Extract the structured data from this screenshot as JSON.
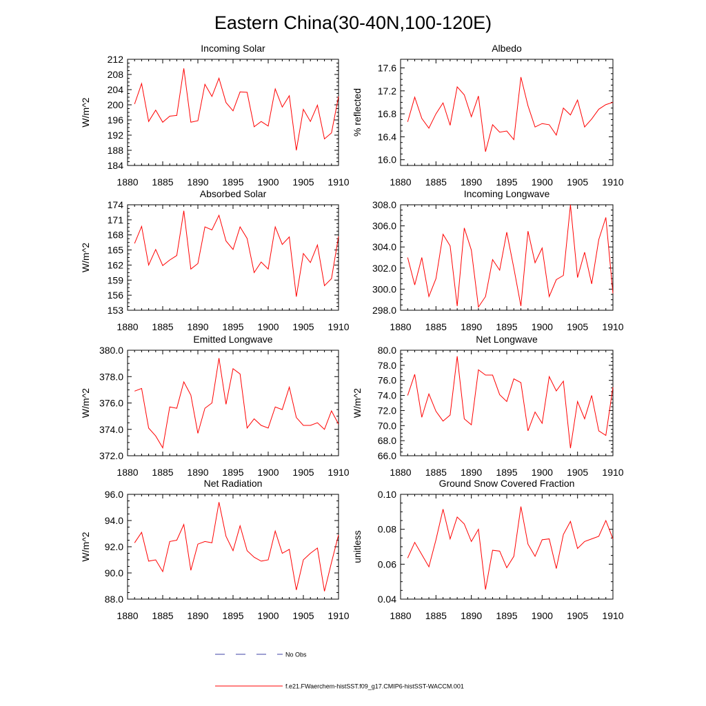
{
  "figure": {
    "title": "Eastern China(30-40N,100-120E)"
  },
  "colors": {
    "model_line": "#ff0000",
    "obs_line": "#3b3fa6",
    "axis": "#000000",
    "background": "#ffffff"
  },
  "legend": {
    "obs_label": "No Obs",
    "model_label": "f.e21.FWaerchem-histSST.f09_g17.CMIP6-histSST-WACCM.001",
    "obs_line_style": "dashed",
    "placement": "bottom-center"
  },
  "chart_data": [
    {
      "type": "line",
      "title": "Incoming Solar",
      "ylabel": "W/m^2",
      "xlim": [
        1880,
        1910
      ],
      "ylim": [
        184,
        212
      ],
      "xticks": [
        1880,
        1885,
        1890,
        1895,
        1900,
        1905,
        1910
      ],
      "yticks": [
        "184",
        "188",
        "192",
        "196",
        "200",
        "204",
        "208",
        "212"
      ],
      "grid": false,
      "x": [
        1881,
        1882,
        1883,
        1884,
        1885,
        1886,
        1887,
        1888,
        1889,
        1890,
        1891,
        1892,
        1893,
        1894,
        1895,
        1896,
        1897,
        1898,
        1899,
        1900,
        1901,
        1902,
        1903,
        1904,
        1905,
        1906,
        1907,
        1908,
        1909,
        1910
      ],
      "series": [
        {
          "values": [
            200.2,
            205.6,
            195.6,
            198.6,
            195.4,
            197.0,
            197.2,
            209.6,
            195.4,
            195.8,
            205.4,
            202.2,
            207.0,
            200.6,
            198.4,
            203.4,
            203.3,
            194.2,
            195.6,
            194.4,
            204.2,
            199.4,
            202.4,
            188.0,
            198.8,
            195.6,
            199.9,
            191.0,
            192.6,
            202.2
          ]
        }
      ]
    },
    {
      "type": "line",
      "title": "Albedo",
      "ylabel": "% reflected",
      "xlim": [
        1880,
        1910
      ],
      "ylim": [
        15.9,
        17.75
      ],
      "xticks": [
        1880,
        1885,
        1890,
        1895,
        1900,
        1905,
        1910
      ],
      "yticks": [
        "16.0",
        "16.4",
        "16.8",
        "17.2",
        "17.6"
      ],
      "grid": false,
      "x": [
        1881,
        1882,
        1883,
        1884,
        1885,
        1886,
        1887,
        1888,
        1889,
        1890,
        1891,
        1892,
        1893,
        1894,
        1895,
        1896,
        1897,
        1898,
        1899,
        1900,
        1901,
        1902,
        1903,
        1904,
        1905,
        1906,
        1907,
        1908,
        1909,
        1910
      ],
      "series": [
        {
          "values": [
            16.66,
            17.09,
            16.72,
            16.55,
            16.8,
            16.99,
            16.6,
            17.27,
            17.13,
            16.75,
            17.11,
            16.14,
            16.61,
            16.48,
            16.5,
            16.35,
            17.44,
            16.94,
            16.57,
            16.63,
            16.61,
            16.43,
            16.9,
            16.78,
            17.04,
            16.57,
            16.71,
            16.88,
            16.96,
            17.0
          ]
        }
      ]
    },
    {
      "type": "line",
      "title": "Absorbed Solar",
      "ylabel": "W/m^2",
      "xlim": [
        1880,
        1910
      ],
      "ylim": [
        153,
        174
      ],
      "xticks": [
        1880,
        1885,
        1890,
        1895,
        1900,
        1905,
        1910
      ],
      "yticks": [
        "153",
        "156",
        "159",
        "162",
        "165",
        "168",
        "171",
        "174"
      ],
      "grid": false,
      "x": [
        1881,
        1882,
        1883,
        1884,
        1885,
        1886,
        1887,
        1888,
        1889,
        1890,
        1891,
        1892,
        1893,
        1894,
        1895,
        1896,
        1897,
        1898,
        1899,
        1900,
        1901,
        1902,
        1903,
        1904,
        1905,
        1906,
        1907,
        1908,
        1909,
        1910
      ],
      "series": [
        {
          "values": [
            166.3,
            169.7,
            162.0,
            165.1,
            161.9,
            163.0,
            163.9,
            172.8,
            161.2,
            162.3,
            169.6,
            169.0,
            171.9,
            166.8,
            165.1,
            169.6,
            167.3,
            160.5,
            162.6,
            161.2,
            169.6,
            166.1,
            167.6,
            155.7,
            164.3,
            162.5,
            166.0,
            157.9,
            159.3,
            167.7
          ]
        }
      ]
    },
    {
      "type": "line",
      "title": "Incoming Longwave",
      "ylabel": "",
      "xlim": [
        1880,
        1910
      ],
      "ylim": [
        298.0,
        308.0
      ],
      "xticks": [
        1880,
        1885,
        1890,
        1895,
        1900,
        1905,
        1910
      ],
      "yticks": [
        "298.0",
        "300.0",
        "302.0",
        "304.0",
        "306.0",
        "308.0"
      ],
      "grid": false,
      "x": [
        1881,
        1882,
        1883,
        1884,
        1885,
        1886,
        1887,
        1888,
        1889,
        1890,
        1891,
        1892,
        1893,
        1894,
        1895,
        1896,
        1897,
        1898,
        1899,
        1900,
        1901,
        1902,
        1903,
        1904,
        1905,
        1906,
        1907,
        1908,
        1909,
        1910
      ],
      "series": [
        {
          "values": [
            303.0,
            300.4,
            303.0,
            299.3,
            301.0,
            305.2,
            304.1,
            298.4,
            305.8,
            303.7,
            298.3,
            299.3,
            302.8,
            301.8,
            305.4,
            302.0,
            298.4,
            305.5,
            302.5,
            303.9,
            299.3,
            300.9,
            301.3,
            308.0,
            301.1,
            303.5,
            300.5,
            304.7,
            306.8,
            299.6
          ]
        }
      ]
    },
    {
      "type": "line",
      "title": "Emitted Longwave",
      "ylabel": "W/m^2",
      "xlim": [
        1880,
        1910
      ],
      "ylim": [
        372.0,
        380.0
      ],
      "xticks": [
        1880,
        1885,
        1890,
        1895,
        1900,
        1905,
        1910
      ],
      "yticks": [
        "372.0",
        "374.0",
        "376.0",
        "378.0",
        "380.0"
      ],
      "grid": false,
      "x": [
        1881,
        1882,
        1883,
        1884,
        1885,
        1886,
        1887,
        1888,
        1889,
        1890,
        1891,
        1892,
        1893,
        1894,
        1895,
        1896,
        1897,
        1898,
        1899,
        1900,
        1901,
        1902,
        1903,
        1904,
        1905,
        1906,
        1907,
        1908,
        1909,
        1910
      ],
      "series": [
        {
          "values": [
            376.9,
            377.1,
            374.1,
            373.5,
            372.6,
            375.7,
            375.6,
            377.6,
            376.6,
            373.7,
            375.6,
            376.0,
            379.4,
            375.9,
            378.6,
            378.2,
            374.1,
            374.8,
            374.3,
            374.1,
            375.7,
            375.5,
            377.2,
            374.9,
            374.3,
            374.3,
            374.5,
            374.0,
            375.4,
            374.4
          ]
        }
      ]
    },
    {
      "type": "line",
      "title": "Net Longwave",
      "ylabel": "W/m^2",
      "xlim": [
        1880,
        1910
      ],
      "ylim": [
        66.0,
        80.0
      ],
      "xticks": [
        1880,
        1885,
        1890,
        1895,
        1900,
        1905,
        1910
      ],
      "yticks": [
        "66.0",
        "68.0",
        "70.0",
        "72.0",
        "74.0",
        "76.0",
        "78.0",
        "80.0"
      ],
      "grid": false,
      "x": [
        1881,
        1882,
        1883,
        1884,
        1885,
        1886,
        1887,
        1888,
        1889,
        1890,
        1891,
        1892,
        1893,
        1894,
        1895,
        1896,
        1897,
        1898,
        1899,
        1900,
        1901,
        1902,
        1903,
        1904,
        1905,
        1906,
        1907,
        1908,
        1909,
        1910
      ],
      "series": [
        {
          "values": [
            74.0,
            76.8,
            71.1,
            74.2,
            71.9,
            70.6,
            71.4,
            79.2,
            70.9,
            70.1,
            77.4,
            76.7,
            76.7,
            74.1,
            73.2,
            76.2,
            75.7,
            69.3,
            71.8,
            70.3,
            76.5,
            74.6,
            75.9,
            67.0,
            73.2,
            70.9,
            74.0,
            69.3,
            68.7,
            75.1
          ]
        }
      ]
    },
    {
      "type": "line",
      "title": "Net Radiation",
      "ylabel": "W/m^2",
      "xlim": [
        1880,
        1910
      ],
      "ylim": [
        88.0,
        96.0
      ],
      "xticks": [
        1880,
        1885,
        1890,
        1895,
        1900,
        1905,
        1910
      ],
      "yticks": [
        "88.0",
        "90.0",
        "92.0",
        "94.0",
        "96.0"
      ],
      "grid": false,
      "x": [
        1881,
        1882,
        1883,
        1884,
        1885,
        1886,
        1887,
        1888,
        1889,
        1890,
        1891,
        1892,
        1893,
        1894,
        1895,
        1896,
        1897,
        1898,
        1899,
        1900,
        1901,
        1902,
        1903,
        1904,
        1905,
        1906,
        1907,
        1908,
        1909,
        1910
      ],
      "series": [
        {
          "values": [
            92.3,
            93.1,
            90.9,
            91.0,
            90.1,
            92.4,
            92.5,
            93.7,
            90.2,
            92.2,
            92.4,
            92.3,
            95.4,
            92.8,
            91.7,
            93.6,
            91.7,
            91.2,
            90.9,
            91.0,
            93.2,
            91.5,
            91.8,
            88.7,
            91.0,
            91.5,
            91.9,
            88.6,
            90.8,
            92.9
          ]
        }
      ]
    },
    {
      "type": "line",
      "title": "Ground Snow Covered Fraction",
      "ylabel": "unitless",
      "xlim": [
        1880,
        1910
      ],
      "ylim": [
        0.04,
        0.1
      ],
      "xticks": [
        1880,
        1885,
        1890,
        1895,
        1900,
        1905,
        1910
      ],
      "yticks": [
        "0.04",
        "0.06",
        "0.08",
        "0.10"
      ],
      "grid": false,
      "x": [
        1881,
        1882,
        1883,
        1884,
        1885,
        1886,
        1887,
        1888,
        1889,
        1890,
        1891,
        1892,
        1893,
        1894,
        1895,
        1896,
        1897,
        1898,
        1899,
        1900,
        1901,
        1902,
        1903,
        1904,
        1905,
        1906,
        1907,
        1908,
        1909,
        1910
      ],
      "series": [
        {
          "values": [
            0.0635,
            0.0725,
            0.0655,
            0.0585,
            0.074,
            0.0915,
            0.0745,
            0.087,
            0.083,
            0.073,
            0.08,
            0.0455,
            0.068,
            0.0675,
            0.058,
            0.0645,
            0.093,
            0.0715,
            0.0645,
            0.074,
            0.0745,
            0.0575,
            0.077,
            0.0845,
            0.069,
            0.073,
            0.0745,
            0.076,
            0.085,
            0.0745
          ]
        }
      ]
    }
  ]
}
